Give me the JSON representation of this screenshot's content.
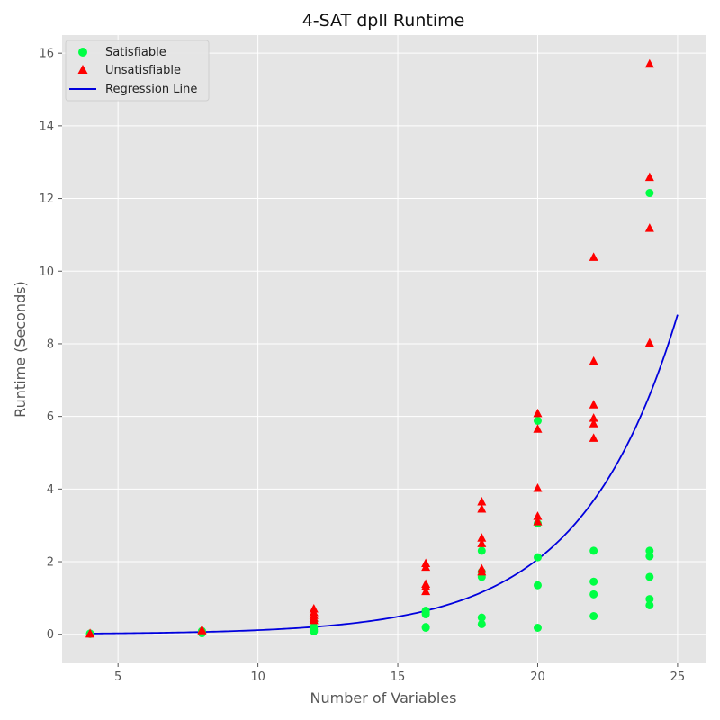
{
  "chart_data": {
    "type": "scatter",
    "title": "4-SAT dpll Runtime",
    "xlabel": "Number of Variables",
    "ylabel": "Runtime (Seconds)",
    "xlim": [
      3,
      26
    ],
    "ylim": [
      -0.8,
      16.5
    ],
    "x_ticks": [
      5,
      10,
      15,
      20,
      25
    ],
    "y_ticks": [
      0,
      2,
      4,
      6,
      8,
      10,
      12,
      14,
      16
    ],
    "grid": true,
    "legend_position": "top-left",
    "colors": {
      "background": "#e5e5e5",
      "grid": "#ffffff",
      "satisfiable": "#00ff44",
      "unsatisfiable": "#ff0000",
      "regression": "#0000dd"
    },
    "series": [
      {
        "name": "Satisfiable",
        "marker": "circle",
        "points": [
          [
            4,
            0.02
          ],
          [
            4,
            0.01
          ],
          [
            8,
            0.03
          ],
          [
            8,
            0.06
          ],
          [
            8,
            0.09
          ],
          [
            12,
            0.08
          ],
          [
            12,
            0.13
          ],
          [
            12,
            0.2
          ],
          [
            12,
            0.35
          ],
          [
            16,
            0.18
          ],
          [
            16,
            0.2
          ],
          [
            16,
            0.55
          ],
          [
            16,
            0.6
          ],
          [
            16,
            0.65
          ],
          [
            18,
            0.28
          ],
          [
            18,
            0.46
          ],
          [
            18,
            1.58
          ],
          [
            18,
            1.72
          ],
          [
            18,
            2.3
          ],
          [
            20,
            0.18
          ],
          [
            20,
            1.35
          ],
          [
            20,
            2.12
          ],
          [
            20,
            3.05
          ],
          [
            20,
            5.88
          ],
          [
            22,
            0.5
          ],
          [
            22,
            1.1
          ],
          [
            22,
            1.45
          ],
          [
            22,
            2.3
          ],
          [
            24,
            0.8
          ],
          [
            24,
            0.97
          ],
          [
            24,
            1.58
          ],
          [
            24,
            2.15
          ],
          [
            24,
            2.3
          ],
          [
            24,
            12.15
          ]
        ]
      },
      {
        "name": "Unsatisfiable",
        "marker": "triangle",
        "points": [
          [
            4,
            0.01
          ],
          [
            4,
            0.02
          ],
          [
            8,
            0.1
          ],
          [
            8,
            0.12
          ],
          [
            12,
            0.38
          ],
          [
            12,
            0.45
          ],
          [
            12,
            0.52
          ],
          [
            12,
            0.6
          ],
          [
            12,
            0.7
          ],
          [
            16,
            1.18
          ],
          [
            16,
            1.32
          ],
          [
            16,
            1.38
          ],
          [
            16,
            1.85
          ],
          [
            16,
            1.95
          ],
          [
            18,
            1.72
          ],
          [
            18,
            1.8
          ],
          [
            18,
            2.5
          ],
          [
            18,
            2.65
          ],
          [
            18,
            3.45
          ],
          [
            18,
            3.65
          ],
          [
            20,
            3.1
          ],
          [
            20,
            3.25
          ],
          [
            20,
            4.02
          ],
          [
            20,
            5.65
          ],
          [
            20,
            6.08
          ],
          [
            22,
            5.4
          ],
          [
            22,
            5.8
          ],
          [
            22,
            5.95
          ],
          [
            22,
            6.32
          ],
          [
            22,
            7.52
          ],
          [
            22,
            10.38
          ],
          [
            24,
            8.02
          ],
          [
            24,
            11.18
          ],
          [
            24,
            12.58
          ],
          [
            24,
            15.7
          ]
        ]
      },
      {
        "name": "Regression Line",
        "type": "line",
        "function": "exponential",
        "x_range": [
          4,
          25
        ],
        "points": [
          [
            4,
            0.02
          ],
          [
            8,
            0.06
          ],
          [
            10,
            0.12
          ],
          [
            12,
            0.22
          ],
          [
            14,
            0.38
          ],
          [
            16,
            0.68
          ],
          [
            18,
            1.18
          ],
          [
            20,
            2.12
          ],
          [
            22,
            3.8
          ],
          [
            24,
            6.6
          ],
          [
            25,
            8.8
          ]
        ]
      }
    ]
  }
}
